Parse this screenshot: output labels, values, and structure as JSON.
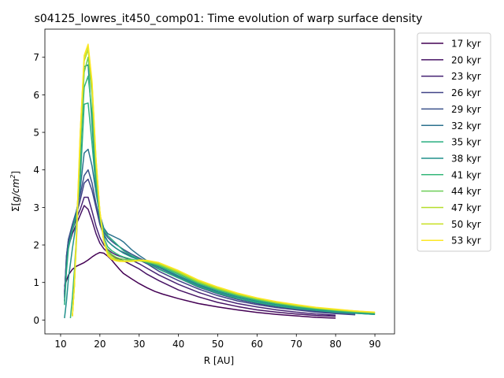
{
  "chart_data": {
    "type": "line",
    "title": "s04125_lowres_it450_comp01: Time evolution of warp surface density",
    "xlabel": "R [AU]",
    "ylabel_prefix": "Σ[",
    "ylabel_unit": "g/cm",
    "ylabel_exp": "2",
    "ylabel_suffix": "]",
    "xlim": [
      6.0,
      95.0
    ],
    "ylim": [
      -0.37,
      7.75
    ],
    "xticks": [
      10,
      20,
      30,
      40,
      50,
      60,
      70,
      80,
      90
    ],
    "yticks": [
      0,
      1,
      2,
      3,
      4,
      5,
      6,
      7
    ],
    "grid": false,
    "legend_position": "outside-right",
    "series": [
      {
        "name": "17 kyr",
        "color": "#440154",
        "x": [
          11,
          12,
          13,
          14,
          15,
          16,
          17,
          18,
          19,
          20,
          21,
          22,
          23,
          24,
          25,
          26,
          28,
          30,
          32,
          34,
          36,
          40,
          45,
          50,
          55,
          60,
          65,
          70,
          75,
          80
        ],
        "y": [
          0.9,
          1.2,
          1.35,
          1.43,
          1.48,
          1.53,
          1.6,
          1.68,
          1.75,
          1.8,
          1.78,
          1.7,
          1.6,
          1.47,
          1.35,
          1.24,
          1.1,
          0.97,
          0.86,
          0.76,
          0.69,
          0.57,
          0.44,
          0.35,
          0.27,
          0.2,
          0.15,
          0.11,
          0.07,
          0.05
        ]
      },
      {
        "name": "20 kyr",
        "color": "#471365",
        "x": [
          11,
          11.5,
          12,
          13,
          14,
          15,
          16,
          17,
          18,
          19,
          20,
          21,
          22,
          23,
          24,
          25,
          26,
          28,
          30,
          32,
          35,
          40,
          45,
          50,
          55,
          60,
          65,
          70,
          75,
          80
        ],
        "y": [
          0.75,
          1.5,
          1.95,
          2.3,
          2.55,
          2.8,
          3.05,
          2.95,
          2.65,
          2.3,
          2.05,
          1.9,
          1.8,
          1.72,
          1.66,
          1.62,
          1.58,
          1.47,
          1.36,
          1.22,
          1.05,
          0.8,
          0.62,
          0.47,
          0.36,
          0.27,
          0.21,
          0.16,
          0.12,
          0.1
        ]
      },
      {
        "name": "23 kyr",
        "color": "#482475",
        "x": [
          11,
          11.5,
          12,
          13,
          14,
          15,
          16,
          17,
          18,
          19,
          20,
          21,
          22,
          23,
          24,
          25,
          26,
          28,
          30,
          32,
          35,
          40,
          45,
          50,
          55,
          60,
          65,
          70,
          75,
          80
        ],
        "y": [
          0.7,
          1.6,
          2.05,
          2.4,
          2.7,
          2.95,
          3.27,
          3.27,
          2.9,
          2.5,
          2.2,
          2.0,
          1.88,
          1.8,
          1.74,
          1.7,
          1.67,
          1.6,
          1.5,
          1.38,
          1.2,
          0.95,
          0.74,
          0.57,
          0.44,
          0.35,
          0.27,
          0.21,
          0.16,
          0.13
        ]
      },
      {
        "name": "26 kyr",
        "color": "#414487",
        "x": [
          11,
          11.5,
          12,
          13,
          14,
          15,
          16,
          17,
          18,
          19,
          20,
          21,
          22,
          23,
          24,
          25,
          26,
          28,
          30,
          32,
          35,
          40,
          45,
          50,
          55,
          60,
          65,
          70,
          75,
          80,
          85
        ],
        "y": [
          0.65,
          1.7,
          2.15,
          2.5,
          2.8,
          3.2,
          3.65,
          3.75,
          3.45,
          3.0,
          2.55,
          2.25,
          2.1,
          2.0,
          1.92,
          1.85,
          1.8,
          1.7,
          1.6,
          1.5,
          1.3,
          1.05,
          0.83,
          0.65,
          0.51,
          0.41,
          0.33,
          0.27,
          0.21,
          0.17,
          0.14
        ]
      },
      {
        "name": "29 kyr",
        "color": "#3b528b",
        "x": [
          11,
          11.5,
          12,
          13,
          14,
          15,
          16,
          17,
          18,
          19,
          20,
          21,
          22,
          23,
          24,
          25,
          26,
          28,
          30,
          32,
          35,
          40,
          45,
          50,
          55,
          60,
          65,
          70,
          75,
          80,
          85
        ],
        "y": [
          0.6,
          1.7,
          2.15,
          2.55,
          2.9,
          3.35,
          3.85,
          4.0,
          3.65,
          3.1,
          2.65,
          2.35,
          2.2,
          2.1,
          2.02,
          1.95,
          1.88,
          1.76,
          1.65,
          1.55,
          1.36,
          1.12,
          0.88,
          0.7,
          0.55,
          0.44,
          0.36,
          0.29,
          0.23,
          0.19,
          0.15
        ]
      },
      {
        "name": "32 kyr",
        "color": "#2c728e",
        "x": [
          11,
          11.5,
          12,
          13,
          14,
          15,
          16,
          17,
          18,
          19,
          20,
          21,
          22,
          23,
          24,
          25,
          26,
          27,
          28,
          30,
          32,
          35,
          40,
          45,
          50,
          55,
          60,
          65,
          70,
          75,
          80,
          85,
          90
        ],
        "y": [
          0.5,
          1.5,
          2.0,
          2.45,
          2.85,
          3.5,
          4.45,
          4.55,
          4.1,
          3.4,
          2.8,
          2.45,
          2.3,
          2.25,
          2.2,
          2.15,
          2.08,
          1.98,
          1.88,
          1.72,
          1.58,
          1.4,
          1.15,
          0.92,
          0.74,
          0.59,
          0.47,
          0.38,
          0.31,
          0.26,
          0.21,
          0.18,
          0.15
        ]
      },
      {
        "name": "35 kyr",
        "color": "#28ae80",
        "x": [
          11,
          11.5,
          12,
          13,
          14,
          15,
          16,
          17,
          18,
          19,
          20,
          21,
          22,
          23,
          24,
          25,
          26,
          28,
          30,
          32,
          35,
          40,
          45,
          50,
          55,
          60,
          65,
          70,
          75,
          80,
          85,
          90
        ],
        "y": [
          0.4,
          1.3,
          1.9,
          2.4,
          2.8,
          3.7,
          5.75,
          5.78,
          4.7,
          3.5,
          2.75,
          2.4,
          2.25,
          2.15,
          2.05,
          1.95,
          1.85,
          1.72,
          1.62,
          1.52,
          1.35,
          1.12,
          0.9,
          0.72,
          0.58,
          0.47,
          0.38,
          0.31,
          0.26,
          0.21,
          0.18,
          0.15
        ]
      },
      {
        "name": "38 kyr",
        "color": "#21918c",
        "x": [
          11,
          11.5,
          12,
          13,
          14,
          15,
          16,
          17,
          18,
          19,
          20,
          21,
          22,
          23,
          24,
          25,
          26,
          28,
          30,
          32,
          35,
          40,
          45,
          50,
          55,
          60,
          65,
          70,
          75,
          80,
          85,
          90
        ],
        "y": [
          0.05,
          0.5,
          1.1,
          1.9,
          2.6,
          4.2,
          6.75,
          6.8,
          5.2,
          3.6,
          2.7,
          2.3,
          2.1,
          2.0,
          1.92,
          1.85,
          1.78,
          1.68,
          1.6,
          1.55,
          1.42,
          1.18,
          0.95,
          0.77,
          0.62,
          0.5,
          0.41,
          0.34,
          0.28,
          0.23,
          0.19,
          0.16
        ]
      },
      {
        "name": "41 kyr",
        "color": "#35b779",
        "x": [
          12.5,
          13,
          13.5,
          14,
          15,
          16,
          17,
          18,
          19,
          20,
          21,
          22,
          23,
          24,
          25,
          26,
          28,
          30,
          32,
          35,
          40,
          45,
          50,
          55,
          60,
          65,
          70,
          75,
          80,
          85,
          90
        ],
        "y": [
          0.05,
          0.6,
          1.3,
          2.2,
          4.5,
          6.2,
          6.5,
          5.5,
          3.8,
          2.7,
          2.2,
          1.95,
          1.85,
          1.78,
          1.72,
          1.68,
          1.62,
          1.58,
          1.55,
          1.45,
          1.22,
          0.98,
          0.8,
          0.65,
          0.53,
          0.44,
          0.36,
          0.3,
          0.25,
          0.21,
          0.18
        ]
      },
      {
        "name": "44 kyr",
        "color": "#6ece58",
        "x": [
          13,
          13.5,
          14,
          15,
          16,
          17,
          18,
          19,
          20,
          21,
          22,
          23,
          24,
          25,
          26,
          28,
          30,
          32,
          35,
          40,
          45,
          50,
          55,
          60,
          65,
          70,
          75,
          80,
          85,
          90
        ],
        "y": [
          0.1,
          0.9,
          2.0,
          4.6,
          6.6,
          7.0,
          6.0,
          4.0,
          2.8,
          2.1,
          1.85,
          1.75,
          1.68,
          1.64,
          1.62,
          1.6,
          1.58,
          1.55,
          1.47,
          1.25,
          1.0,
          0.82,
          0.67,
          0.55,
          0.45,
          0.37,
          0.31,
          0.26,
          0.22,
          0.19
        ]
      },
      {
        "name": "47 kyr",
        "color": "#b5de2b",
        "x": [
          13,
          13.5,
          14,
          15,
          16,
          17,
          18,
          19,
          20,
          21,
          22,
          23,
          24,
          25,
          26,
          28,
          30,
          32,
          35,
          40,
          45,
          50,
          55,
          60,
          65,
          70,
          75,
          80,
          85,
          90
        ],
        "y": [
          0.1,
          0.9,
          2.1,
          4.8,
          6.9,
          7.2,
          6.2,
          4.2,
          2.9,
          2.1,
          1.8,
          1.7,
          1.63,
          1.6,
          1.58,
          1.57,
          1.58,
          1.56,
          1.5,
          1.28,
          1.03,
          0.84,
          0.69,
          0.57,
          0.47,
          0.39,
          0.32,
          0.27,
          0.23,
          0.2
        ]
      },
      {
        "name": "50 kyr",
        "color": "#c8e020",
        "x": [
          13,
          13.5,
          14,
          15,
          16,
          17,
          18,
          19,
          20,
          21,
          22,
          23,
          24,
          25,
          26,
          28,
          30,
          32,
          35,
          40,
          45,
          50,
          55,
          60,
          65,
          70,
          75,
          80,
          85,
          90
        ],
        "y": [
          0.1,
          0.9,
          2.2,
          5.0,
          7.0,
          7.3,
          6.3,
          4.3,
          2.9,
          2.1,
          1.75,
          1.65,
          1.6,
          1.57,
          1.56,
          1.56,
          1.58,
          1.57,
          1.52,
          1.3,
          1.05,
          0.86,
          0.71,
          0.58,
          0.48,
          0.4,
          0.33,
          0.28,
          0.24,
          0.2
        ]
      },
      {
        "name": "53 kyr",
        "color": "#fde725",
        "x": [
          13,
          13.5,
          14,
          15,
          16,
          17,
          18,
          19,
          20,
          21,
          22,
          23,
          24,
          25,
          26,
          28,
          30,
          32,
          35,
          40,
          45,
          50,
          55,
          60,
          65,
          70,
          75,
          80,
          85,
          90
        ],
        "y": [
          0.1,
          0.9,
          2.2,
          5.0,
          7.05,
          7.35,
          6.35,
          4.3,
          2.9,
          2.1,
          1.72,
          1.62,
          1.58,
          1.56,
          1.56,
          1.57,
          1.6,
          1.59,
          1.53,
          1.32,
          1.07,
          0.88,
          0.72,
          0.59,
          0.49,
          0.41,
          0.34,
          0.29,
          0.24,
          0.21
        ]
      }
    ]
  }
}
